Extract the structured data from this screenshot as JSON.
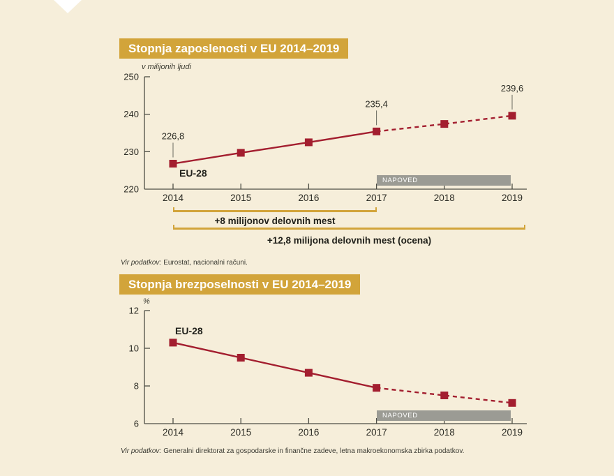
{
  "page": {
    "background_color": "#f6eeda",
    "accent_gold": "#d2a43a",
    "series_red": "#a31e2f",
    "forecast_band_gray": "#9b9b94",
    "axis_color": "#4d4d45",
    "text_color": "#2d2d26",
    "leader_line_color": "#6b6b60"
  },
  "chart_data": [
    {
      "id": "employment",
      "type": "line",
      "title": "Stopnja zaposlenosti v EU 2014–2019",
      "ylabel": "v milijonih ljudi",
      "series_name": "EU-28",
      "x": [
        2014,
        2015,
        2016,
        2017,
        2018,
        2019
      ],
      "values": [
        226.8,
        229.7,
        232.5,
        235.4,
        237.4,
        239.6
      ],
      "solid_until_index": 3,
      "dashed_note": "values from 2017 onward shown as dashed forecast line",
      "point_labels": [
        {
          "x": 2014,
          "label": "226,8"
        },
        {
          "x": 2017,
          "label": "235,4"
        },
        {
          "x": 2019,
          "label": "239,6"
        }
      ],
      "ylim": [
        220,
        250
      ],
      "yticks": [
        220,
        230,
        240,
        250
      ],
      "grid": false,
      "legend_position": "none",
      "forecast_band": {
        "label": "NAPOVED",
        "from_x": 2017,
        "to_x": 2019
      },
      "annotations": [
        {
          "label": "+8 milijonov delovnih mest",
          "from_x": 2014,
          "to_x": 2017
        },
        {
          "label": "+12,8 milijona delovnih mest (ocena)",
          "from_x": 2014,
          "to_x": 2019
        }
      ],
      "source": {
        "prefix": "Vir podatkov:",
        "text": "Eurostat, nacionalni računi."
      }
    },
    {
      "id": "unemployment",
      "type": "line",
      "title": "Stopnja brezposelnosti v EU 2014–2019",
      "ylabel": "%",
      "series_name": "EU-28",
      "x": [
        2014,
        2015,
        2016,
        2017,
        2018,
        2019
      ],
      "values": [
        10.3,
        9.5,
        8.7,
        7.9,
        7.5,
        7.1
      ],
      "solid_until_index": 3,
      "dashed_note": "values from 2017 onward shown as dashed forecast line",
      "point_labels": [],
      "ylim": [
        6,
        12
      ],
      "yticks": [
        6,
        8,
        10,
        12
      ],
      "grid": false,
      "legend_position": "none",
      "forecast_band": {
        "label": "NAPOVED",
        "from_x": 2017,
        "to_x": 2019
      },
      "annotations": [],
      "source": {
        "prefix": "Vir podatkov:",
        "text": "Generalni direktorat za gospodarske in finančne zadeve, letna makroekonomska zbirka podatkov."
      }
    }
  ]
}
